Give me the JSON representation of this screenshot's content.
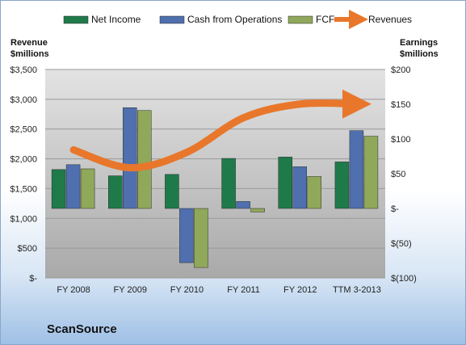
{
  "chart_data": {
    "type": "bar",
    "categories": [
      "FY 2008",
      "FY 2009",
      "FY 2010",
      "FY 2011",
      "FY 2012",
      "TTM 3-2013"
    ],
    "series": [
      {
        "name": "Net Income",
        "axis": "right",
        "values": [
          56,
          47,
          49,
          72,
          74,
          67
        ],
        "color": "#1f7a4a"
      },
      {
        "name": "Cash from Operations",
        "axis": "right",
        "values": [
          63,
          145,
          -78,
          10,
          60,
          112
        ],
        "color": "#4f6fae"
      },
      {
        "name": "FCF",
        "axis": "right",
        "values": [
          57,
          141,
          -85,
          -5,
          46,
          104
        ],
        "color": "#8fa85a"
      },
      {
        "name": "Revenues",
        "type": "line",
        "axis": "left",
        "values": [
          2150,
          1850,
          2110,
          2690,
          2920,
          2920
        ],
        "color": "#e8772b"
      }
    ],
    "left_axis": {
      "title_lines": [
        "Revenue",
        "$millions"
      ],
      "ylim": [
        0,
        3500
      ],
      "ticks": [
        0,
        500,
        1000,
        1500,
        2000,
        2500,
        3000,
        3500
      ],
      "tick_labels": [
        "$-",
        "$500",
        "$1,000",
        "$1,500",
        "$2,000",
        "$2,500",
        "$3,000",
        "$3,500"
      ]
    },
    "right_axis": {
      "title_lines": [
        "Earnings",
        "$millions"
      ],
      "ylim": [
        -100,
        200
      ],
      "ticks": [
        -100,
        -50,
        0,
        50,
        100,
        150,
        200
      ],
      "tick_labels": [
        "$(100)",
        "$(50)",
        "$-",
        "$50",
        "$100",
        "$150",
        "$200"
      ]
    },
    "grid": true,
    "legend_position": "top",
    "company": "ScanSource"
  }
}
